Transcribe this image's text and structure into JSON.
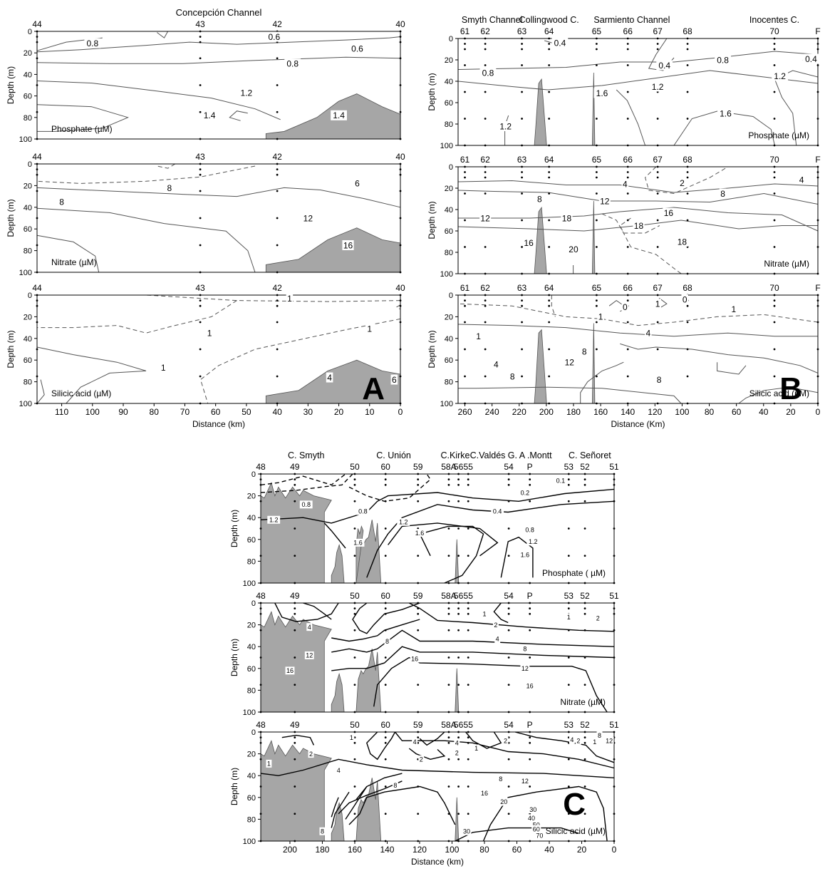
{
  "chart_data": [
    {
      "id": "A-phosphate",
      "type": "contour",
      "panel_letter": "",
      "top_title": "Concepción Channel",
      "label": "Phosphate (µM)",
      "ylabel": "Depth (m)",
      "ylim": [
        0,
        100
      ],
      "xlim": [
        118,
        0
      ],
      "y_ticks": [
        "0",
        "20",
        "40",
        "60",
        "80",
        "100"
      ],
      "x_ticks": [],
      "xlabel": "",
      "stations": [
        {
          "name": "44",
          "x": 118
        },
        {
          "name": "43",
          "x": 65
        },
        {
          "name": "42",
          "x": 40
        },
        {
          "name": "40",
          "x": 0
        }
      ],
      "channel_labels": [],
      "contour_labels": [
        {
          "text": "0.8",
          "x": 100,
          "y": 11
        },
        {
          "text": "0.6",
          "x": 41,
          "y": 5
        },
        {
          "text": "0.6",
          "x": 14,
          "y": 16
        },
        {
          "text": "0.8",
          "x": 35,
          "y": 30
        },
        {
          "text": "1.2",
          "x": 50,
          "y": 57
        },
        {
          "text": "1.4",
          "x": 62,
          "y": 78
        },
        {
          "text": "1.4",
          "x": 20,
          "y": 78
        }
      ]
    },
    {
      "id": "A-nitrate",
      "type": "contour",
      "panel_letter": "",
      "top_title": "",
      "label": "Nitrate (µM)",
      "ylabel": "Depth (m)",
      "ylim": [
        0,
        100
      ],
      "xlim": [
        118,
        0
      ],
      "y_ticks": [
        "0",
        "20",
        "40",
        "60",
        "80",
        "100"
      ],
      "x_ticks": [],
      "xlabel": "",
      "stations": [
        {
          "name": "44",
          "x": 118
        },
        {
          "name": "43",
          "x": 65
        },
        {
          "name": "42",
          "x": 40
        },
        {
          "name": "40",
          "x": 0
        }
      ],
      "channel_labels": [],
      "contour_labels": [
        {
          "text": "8",
          "x": 75,
          "y": 22
        },
        {
          "text": "8",
          "x": 110,
          "y": 35
        },
        {
          "text": "6",
          "x": 14,
          "y": 18
        },
        {
          "text": "12",
          "x": 30,
          "y": 50
        },
        {
          "text": "16",
          "x": 17,
          "y": 75
        }
      ]
    },
    {
      "id": "A-silicic",
      "type": "contour",
      "panel_letter": "A",
      "top_title": "",
      "label": "Silicic acid (µM)",
      "ylabel": "Depth (m)",
      "ylim": [
        0,
        100
      ],
      "xlim": [
        118,
        0
      ],
      "y_ticks": [
        "0",
        "20",
        "40",
        "60",
        "80",
        "100"
      ],
      "x_ticks": [
        "110",
        "100",
        "90",
        "80",
        "70",
        "60",
        "50",
        "40",
        "30",
        "20",
        "10",
        "0"
      ],
      "xlabel": "Distance (km)",
      "stations": [
        {
          "name": "44",
          "x": 118
        },
        {
          "name": "43",
          "x": 65
        },
        {
          "name": "42",
          "x": 40
        },
        {
          "name": "40",
          "x": 0
        }
      ],
      "channel_labels": [],
      "contour_labels": [
        {
          "text": "1",
          "x": 36,
          "y": 3
        },
        {
          "text": "1",
          "x": 62,
          "y": 35
        },
        {
          "text": "1",
          "x": 10,
          "y": 31
        },
        {
          "text": "1",
          "x": 77,
          "y": 67
        },
        {
          "text": "4",
          "x": 23,
          "y": 76
        },
        {
          "text": "6",
          "x": 2,
          "y": 78
        }
      ]
    },
    {
      "id": "B-phosphate",
      "type": "contour",
      "panel_letter": "",
      "top_title": "",
      "label": "Phosphate (µM)",
      "ylabel": "Depth (m)",
      "ylim": [
        0,
        100
      ],
      "xlim": [
        265,
        0
      ],
      "y_ticks": [
        "0",
        "20",
        "40",
        "60",
        "80",
        "100"
      ],
      "x_ticks": [],
      "xlabel": "",
      "stations": [
        {
          "name": "61",
          "x": 260
        },
        {
          "name": "62",
          "x": 245
        },
        {
          "name": "63",
          "x": 218
        },
        {
          "name": "64",
          "x": 198
        },
        {
          "name": "65",
          "x": 163
        },
        {
          "name": "66",
          "x": 140
        },
        {
          "name": "67",
          "x": 118
        },
        {
          "name": "68",
          "x": 96
        },
        {
          "name": "70",
          "x": 32
        },
        {
          "name": "F",
          "x": 0
        }
      ],
      "channel_labels": [
        {
          "text": "Smyth Channel",
          "x": 240
        },
        {
          "text": "Collingwood C.",
          "x": 198
        },
        {
          "text": "Sarmiento Channel",
          "x": 137
        },
        {
          "text": "Inocentes C.",
          "x": 32
        }
      ],
      "contour_labels": [
        {
          "text": "0.4",
          "x": 190,
          "y": 4
        },
        {
          "text": "0.4",
          "x": 113,
          "y": 25
        },
        {
          "text": "0.8",
          "x": 70,
          "y": 20
        },
        {
          "text": "0.8",
          "x": 243,
          "y": 32
        },
        {
          "text": "1.2",
          "x": 118,
          "y": 45
        },
        {
          "text": "1.2",
          "x": 28,
          "y": 35
        },
        {
          "text": "0.4",
          "x": 5,
          "y": 19
        },
        {
          "text": "1.6",
          "x": 159,
          "y": 51
        },
        {
          "text": "1.6",
          "x": 68,
          "y": 70
        },
        {
          "text": "1.2",
          "x": 230,
          "y": 82
        }
      ]
    },
    {
      "id": "B-nitrate",
      "type": "contour",
      "panel_letter": "",
      "top_title": "",
      "label": "Nitrate (µM)",
      "ylabel": "Depth (m)",
      "ylim": [
        0,
        100
      ],
      "xlim": [
        265,
        0
      ],
      "y_ticks": [
        "0",
        "20",
        "40",
        "60",
        "80",
        "100"
      ],
      "x_ticks": [],
      "xlabel": "",
      "stations": [
        {
          "name": "61",
          "x": 260
        },
        {
          "name": "62",
          "x": 245
        },
        {
          "name": "63",
          "x": 218
        },
        {
          "name": "64",
          "x": 198
        },
        {
          "name": "65",
          "x": 163
        },
        {
          "name": "66",
          "x": 140
        },
        {
          "name": "67",
          "x": 118
        },
        {
          "name": "68",
          "x": 96
        },
        {
          "name": "70",
          "x": 32
        },
        {
          "name": "F",
          "x": 0
        }
      ],
      "channel_labels": [],
      "contour_labels": [
        {
          "text": "4",
          "x": 142,
          "y": 16
        },
        {
          "text": "2",
          "x": 100,
          "y": 15
        },
        {
          "text": "4",
          "x": 12,
          "y": 12
        },
        {
          "text": "8",
          "x": 205,
          "y": 30
        },
        {
          "text": "8",
          "x": 70,
          "y": 25
        },
        {
          "text": "12",
          "x": 157,
          "y": 32
        },
        {
          "text": "16",
          "x": 110,
          "y": 43
        },
        {
          "text": "12",
          "x": 245,
          "y": 48
        },
        {
          "text": "18",
          "x": 185,
          "y": 48
        },
        {
          "text": "18",
          "x": 132,
          "y": 55
        },
        {
          "text": "16",
          "x": 213,
          "y": 71
        },
        {
          "text": "18",
          "x": 100,
          "y": 70
        },
        {
          "text": "20",
          "x": 180,
          "y": 77
        }
      ]
    },
    {
      "id": "B-silicic",
      "type": "contour",
      "panel_letter": "B",
      "top_title": "",
      "label": "Silicic acid (µM)",
      "ylabel": "Depth (m)",
      "ylim": [
        0,
        100
      ],
      "xlim": [
        265,
        0
      ],
      "y_ticks": [
        "0",
        "20",
        "40",
        "60",
        "80",
        "100"
      ],
      "x_ticks": [
        "260",
        "240",
        "220",
        "200",
        "180",
        "160",
        "140",
        "120",
        "100",
        "80",
        "60",
        "40",
        "20",
        "0"
      ],
      "xlabel": "Distance (Km)",
      "stations": [
        {
          "name": "61",
          "x": 260
        },
        {
          "name": "62",
          "x": 245
        },
        {
          "name": "63",
          "x": 218
        },
        {
          "name": "64",
          "x": 198
        },
        {
          "name": "65",
          "x": 163
        },
        {
          "name": "66",
          "x": 140
        },
        {
          "name": "67",
          "x": 118
        },
        {
          "name": "68",
          "x": 96
        },
        {
          "name": "70",
          "x": 32
        },
        {
          "name": "F",
          "x": 0
        }
      ],
      "channel_labels": [],
      "contour_labels": [
        {
          "text": "0",
          "x": 142,
          "y": 11
        },
        {
          "text": "1",
          "x": 118,
          "y": 8
        },
        {
          "text": "0",
          "x": 98,
          "y": 4
        },
        {
          "text": "1",
          "x": 62,
          "y": 13
        },
        {
          "text": "1",
          "x": 160,
          "y": 20
        },
        {
          "text": "1",
          "x": 250,
          "y": 38
        },
        {
          "text": "4",
          "x": 125,
          "y": 35
        },
        {
          "text": "8",
          "x": 172,
          "y": 52
        },
        {
          "text": "4",
          "x": 237,
          "y": 64
        },
        {
          "text": "12",
          "x": 183,
          "y": 62
        },
        {
          "text": "8",
          "x": 225,
          "y": 75
        },
        {
          "text": "8",
          "x": 117,
          "y": 78
        }
      ]
    },
    {
      "id": "C-phosphate",
      "type": "contour",
      "panel_letter": "",
      "top_title": "",
      "label": "Phosphate ( µM)",
      "ylabel": "Depth (m)",
      "ylim": [
        0,
        100
      ],
      "xlim": [
        218,
        0
      ],
      "y_ticks": [
        "0",
        "20",
        "40",
        "60",
        "80",
        "100"
      ],
      "x_ticks": [],
      "xlabel": "",
      "stations": [
        {
          "name": "48",
          "x": 218
        },
        {
          "name": "49",
          "x": 197
        },
        {
          "name": "50",
          "x": 160
        },
        {
          "name": "60",
          "x": 141
        },
        {
          "name": "59",
          "x": 121
        },
        {
          "name": "58A",
          "x": 102
        },
        {
          "name": "56",
          "x": 96
        },
        {
          "name": "55",
          "x": 90
        },
        {
          "name": "54",
          "x": 65
        },
        {
          "name": "P",
          "x": 52
        },
        {
          "name": "53",
          "x": 28
        },
        {
          "name": "52",
          "x": 18
        },
        {
          "name": "51",
          "x": 0
        }
      ],
      "channel_labels": [
        {
          "text": "C. Smyth",
          "x": 190
        },
        {
          "text": "C. Unión",
          "x": 136
        },
        {
          "text": "C.Kirke",
          "x": 98
        },
        {
          "text": "C.Valdés",
          "x": 78
        },
        {
          "text": "G. A .Montt",
          "x": 52
        },
        {
          "text": "C. Señoret",
          "x": 15
        }
      ],
      "contour_labels": [
        {
          "text": "0.1",
          "x": 33,
          "y": 6
        },
        {
          "text": "0.2",
          "x": 55,
          "y": 17
        },
        {
          "text": "0.4",
          "x": 72,
          "y": 34
        },
        {
          "text": "0.8",
          "x": 190,
          "y": 28
        },
        {
          "text": "0.8",
          "x": 155,
          "y": 34
        },
        {
          "text": "0.8",
          "x": 52,
          "y": 51
        },
        {
          "text": "1.2",
          "x": 210,
          "y": 42
        },
        {
          "text": "1.2",
          "x": 130,
          "y": 44
        },
        {
          "text": "1.2",
          "x": 50,
          "y": 62
        },
        {
          "text": "1.6",
          "x": 158,
          "y": 63
        },
        {
          "text": "1.6",
          "x": 120,
          "y": 54
        },
        {
          "text": "1.6",
          "x": 55,
          "y": 74
        }
      ]
    },
    {
      "id": "C-nitrate",
      "type": "contour",
      "panel_letter": "",
      "top_title": "",
      "label": "Nitrate (µM)",
      "ylabel": "Depth (m)",
      "ylim": [
        0,
        100
      ],
      "xlim": [
        218,
        0
      ],
      "y_ticks": [
        "0",
        "20",
        "40",
        "60",
        "80",
        "100"
      ],
      "x_ticks": [],
      "xlabel": "",
      "stations": [
        {
          "name": "48",
          "x": 218
        },
        {
          "name": "49",
          "x": 197
        },
        {
          "name": "50",
          "x": 160
        },
        {
          "name": "60",
          "x": 141
        },
        {
          "name": "59",
          "x": 121
        },
        {
          "name": "58A",
          "x": 102
        },
        {
          "name": "56",
          "x": 96
        },
        {
          "name": "55",
          "x": 90
        },
        {
          "name": "54",
          "x": 65
        },
        {
          "name": "P",
          "x": 52
        },
        {
          "name": "53",
          "x": 28
        },
        {
          "name": "52",
          "x": 18
        },
        {
          "name": "51",
          "x": 0
        }
      ],
      "channel_labels": [],
      "contour_labels": [
        {
          "text": "1",
          "x": 80,
          "y": 10
        },
        {
          "text": "2",
          "x": 73,
          "y": 20
        },
        {
          "text": "4",
          "x": 72,
          "y": 33
        },
        {
          "text": "1",
          "x": 28,
          "y": 13
        },
        {
          "text": "2",
          "x": 10,
          "y": 14
        },
        {
          "text": "4",
          "x": 188,
          "y": 22
        },
        {
          "text": "8",
          "x": 140,
          "y": 35
        },
        {
          "text": "8",
          "x": 55,
          "y": 42
        },
        {
          "text": "12",
          "x": 188,
          "y": 48
        },
        {
          "text": "12",
          "x": 55,
          "y": 60
        },
        {
          "text": "16",
          "x": 123,
          "y": 51
        },
        {
          "text": "16",
          "x": 52,
          "y": 76
        },
        {
          "text": "16",
          "x": 200,
          "y": 62
        }
      ]
    },
    {
      "id": "C-silicic",
      "type": "contour",
      "panel_letter": "C",
      "top_title": "",
      "label": "Silicic acid (µM)",
      "ylabel": "Depth (m)",
      "ylim": [
        0,
        100
      ],
      "xlim": [
        218,
        0
      ],
      "y_ticks": [
        "0",
        "20",
        "40",
        "60",
        "80",
        "100"
      ],
      "x_ticks": [
        "200",
        "180",
        "160",
        "140",
        "120",
        "100",
        "80",
        "60",
        "40",
        "20",
        "0"
      ],
      "xlabel": "Distance (km)",
      "stations": [
        {
          "name": "48",
          "x": 218
        },
        {
          "name": "49",
          "x": 197
        },
        {
          "name": "50",
          "x": 160
        },
        {
          "name": "60",
          "x": 141
        },
        {
          "name": "59",
          "x": 121
        },
        {
          "name": "58A",
          "x": 102
        },
        {
          "name": "56",
          "x": 96
        },
        {
          "name": "55",
          "x": 90
        },
        {
          "name": "54",
          "x": 65
        },
        {
          "name": "P",
          "x": 52
        },
        {
          "name": "53",
          "x": 28
        },
        {
          "name": "52",
          "x": 18
        },
        {
          "name": "51",
          "x": 0
        }
      ],
      "channel_labels": [],
      "contour_labels": [
        {
          "text": "1",
          "x": 162,
          "y": 5
        },
        {
          "text": "1",
          "x": 213,
          "y": 29
        },
        {
          "text": "2",
          "x": 187,
          "y": 20
        },
        {
          "text": "4",
          "x": 170,
          "y": 35
        },
        {
          "text": "4",
          "x": 123,
          "y": 9
        },
        {
          "text": "4",
          "x": 97,
          "y": 10
        },
        {
          "text": "2",
          "x": 119,
          "y": 25
        },
        {
          "text": "1",
          "x": 85,
          "y": 15
        },
        {
          "text": "2",
          "x": 67,
          "y": 8
        },
        {
          "text": "2",
          "x": 97,
          "y": 19
        },
        {
          "text": "8",
          "x": 135,
          "y": 49
        },
        {
          "text": "8",
          "x": 70,
          "y": 43
        },
        {
          "text": "12",
          "x": 55,
          "y": 45
        },
        {
          "text": "16",
          "x": 80,
          "y": 56
        },
        {
          "text": "20",
          "x": 68,
          "y": 64
        },
        {
          "text": "30",
          "x": 50,
          "y": 71
        },
        {
          "text": "40",
          "x": 51,
          "y": 79
        },
        {
          "text": "50",
          "x": 48,
          "y": 85
        },
        {
          "text": "60",
          "x": 48,
          "y": 89
        },
        {
          "text": "70",
          "x": 46,
          "y": 95
        },
        {
          "text": "30",
          "x": 91,
          "y": 91
        },
        {
          "text": "8",
          "x": 180,
          "y": 91
        },
        {
          "text": "4",
          "x": 26,
          "y": 7
        },
        {
          "text": "2",
          "x": 22,
          "y": 8
        },
        {
          "text": "8",
          "x": 9,
          "y": 3
        },
        {
          "text": "12",
          "x": 3,
          "y": 8
        },
        {
          "text": "1",
          "x": 12,
          "y": 9
        }
      ]
    }
  ]
}
